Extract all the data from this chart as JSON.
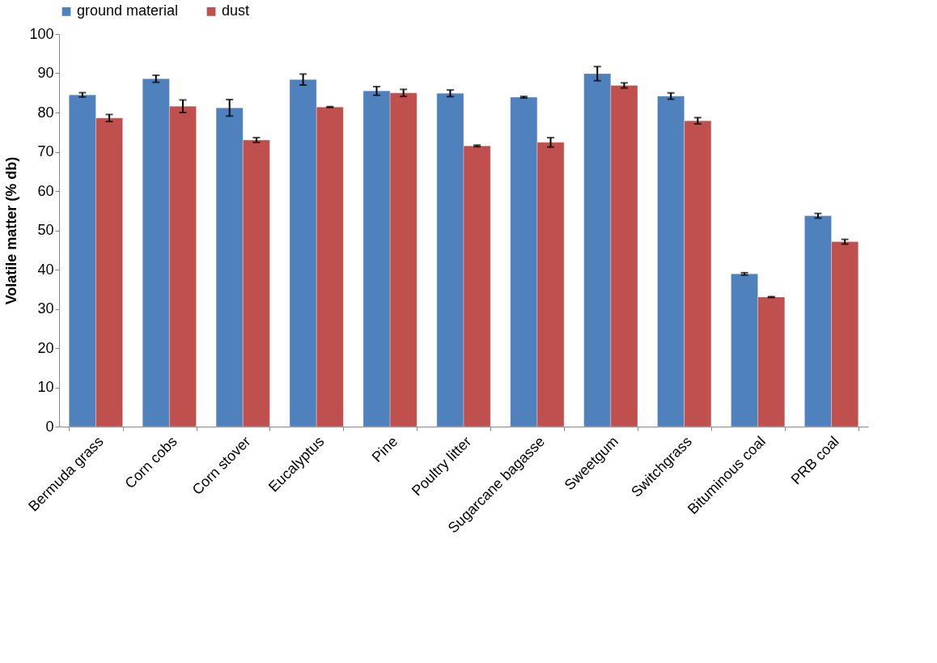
{
  "chart_data": {
    "type": "bar",
    "ylabel": "Volatile matter (% db)",
    "categories": [
      "Bermuda grass",
      "Corn cobs",
      "Corn stover",
      "Eucalyptus",
      "Pine",
      "Poultry litter",
      "Sugarcane bagasse",
      "Sweetgum",
      "Switchgrass",
      "Bituminous coal",
      "PRB coal"
    ],
    "series": [
      {
        "name": "ground material",
        "color": "#4f81bd",
        "values": [
          84.5,
          88.6,
          81.2,
          88.4,
          85.5,
          84.9,
          83.9,
          89.9,
          84.2,
          38.9,
          53.7
        ],
        "errors": [
          0.55,
          0.9,
          2.1,
          1.4,
          1.1,
          0.85,
          0.2,
          1.8,
          0.8,
          0.3,
          0.6
        ]
      },
      {
        "name": "dust",
        "color": "#c0504d",
        "values": [
          78.6,
          81.6,
          73.0,
          81.4,
          85.0,
          71.5,
          72.4,
          86.9,
          77.9,
          33.0,
          47.1
        ],
        "errors": [
          0.9,
          1.6,
          0.6,
          0.1,
          0.9,
          0.2,
          1.2,
          0.65,
          0.8,
          0.1,
          0.6
        ]
      }
    ],
    "ylim": [
      0,
      100
    ],
    "yticks": [
      0,
      10,
      20,
      30,
      40,
      50,
      60,
      70,
      80,
      90,
      100
    ],
    "grid": false,
    "legend": "top"
  }
}
